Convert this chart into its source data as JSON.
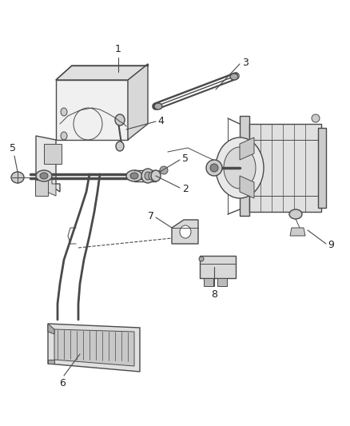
{
  "bg_color": "#ffffff",
  "lc": "#4a4a4a",
  "lc2": "#666666",
  "label_color": "#222222",
  "figsize": [
    4.39,
    5.33
  ],
  "dpi": 100
}
